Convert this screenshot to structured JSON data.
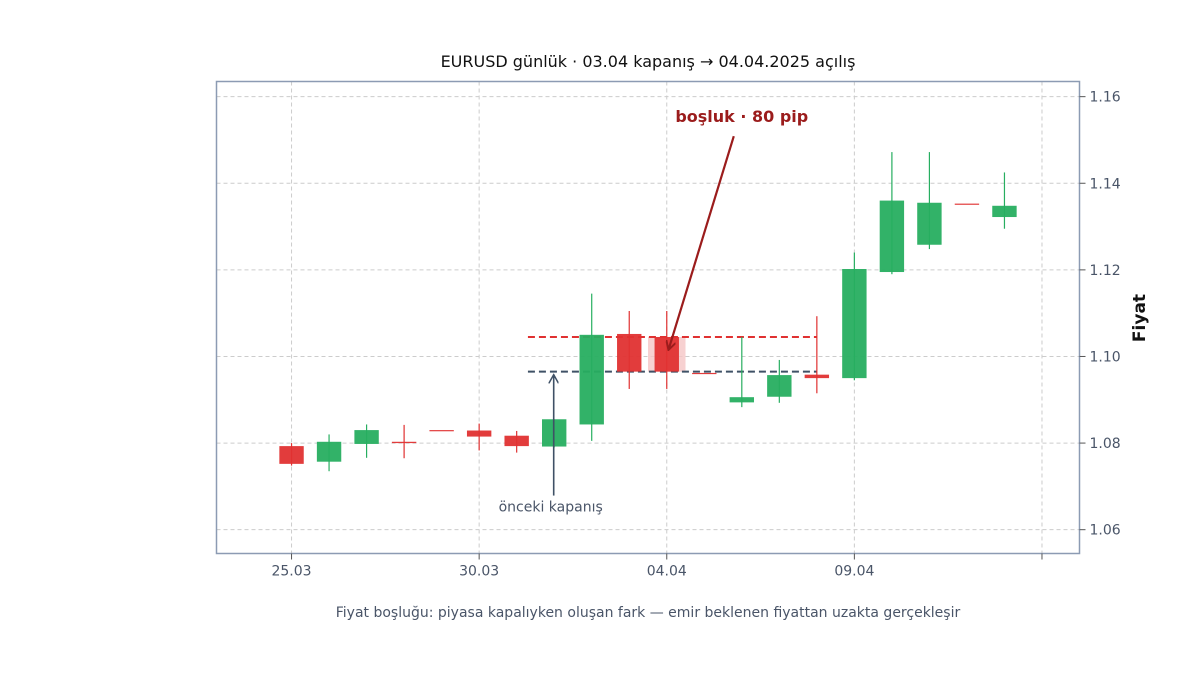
{
  "chart_data": {
    "type": "candlestick",
    "title": "EURUSD günlük · 03.04 kapanış → 04.04.2025 açılış",
    "xlabel": "",
    "ylabel": "Fiyat",
    "caption": "Fiyat boşluğu: piyasa kapalıyken oluşan fark — emir beklenen fiyattan uzakta gerçekleşir",
    "ylim": [
      1.0545,
      1.1635
    ],
    "yticks": [
      1.06,
      1.08,
      1.1,
      1.12,
      1.14,
      1.16
    ],
    "ytick_labels": [
      "1.06",
      "1.08",
      "1.10",
      "1.12",
      "1.14",
      "1.16"
    ],
    "xlim": [
      -2,
      21
    ],
    "xticks": [
      0,
      5,
      10,
      15,
      20
    ],
    "xtick_labels": [
      "25.03",
      "30.03",
      "04.04",
      "09.04",
      ""
    ],
    "grid": true,
    "colors": {
      "up": "#27ae60",
      "down": "#e03131",
      "gap_fill": "#f5c6c6",
      "gap_line": "#e03131",
      "prev_line": "#3f5166",
      "annotation": "#9b1c1c",
      "frame": "#8c9bb3",
      "grid": "#cccccc",
      "text_muted": "#4a5568"
    },
    "candles": [
      {
        "x": 0,
        "open": 1.0793,
        "high": 1.08,
        "low": 1.0748,
        "close": 1.0752
      },
      {
        "x": 1,
        "open": 1.0757,
        "high": 1.082,
        "low": 1.0735,
        "close": 1.0803
      },
      {
        "x": 2,
        "open": 1.0798,
        "high": 1.0843,
        "low": 1.0766,
        "close": 1.083
      },
      {
        "x": 3,
        "open": 1.0803,
        "high": 1.0842,
        "low": 1.0765,
        "close": 1.08
      },
      {
        "x": 4,
        "open": 1.083,
        "high": 1.083,
        "low": 1.083,
        "close": 1.0829
      },
      {
        "x": 5,
        "open": 1.0829,
        "high": 1.0845,
        "low": 1.0783,
        "close": 1.0815
      },
      {
        "x": 6,
        "open": 1.0817,
        "high": 1.0828,
        "low": 1.0778,
        "close": 1.0793
      },
      {
        "x": 7,
        "open": 1.0792,
        "high": 1.0855,
        "low": 1.079,
        "close": 1.0855
      },
      {
        "x": 8,
        "open": 1.0843,
        "high": 1.1145,
        "low": 1.0805,
        "close": 1.105
      },
      {
        "x": 9,
        "open": 1.1052,
        "high": 1.1105,
        "low": 1.0925,
        "close": 1.0965
      },
      {
        "x": 10,
        "open": 1.1045,
        "high": 1.1105,
        "low": 1.0925,
        "close": 1.0965
      },
      {
        "x": 11,
        "open": 1.0962,
        "high": 1.0962,
        "low": 1.0962,
        "close": 1.096
      },
      {
        "x": 12,
        "open": 1.0894,
        "high": 1.1045,
        "low": 1.0883,
        "close": 1.0906
      },
      {
        "x": 13,
        "open": 1.0907,
        "high": 1.0992,
        "low": 1.0893,
        "close": 1.0957
      },
      {
        "x": 14,
        "open": 1.0958,
        "high": 1.1093,
        "low": 1.0915,
        "close": 1.095
      },
      {
        "x": 15,
        "open": 1.095,
        "high": 1.124,
        "low": 1.0945,
        "close": 1.1202
      },
      {
        "x": 16,
        "open": 1.1195,
        "high": 1.1472,
        "low": 1.119,
        "close": 1.136
      },
      {
        "x": 17,
        "open": 1.1258,
        "high": 1.1472,
        "low": 1.1248,
        "close": 1.1355
      },
      {
        "x": 18,
        "open": 1.1353,
        "high": 1.1353,
        "low": 1.1353,
        "close": 1.1352
      },
      {
        "x": 19,
        "open": 1.1322,
        "high": 1.1425,
        "low": 1.1295,
        "close": 1.1348
      }
    ],
    "gap": {
      "x": 10,
      "prev_close": 1.0965,
      "open": 1.1045,
      "line_from_x": 6.3,
      "line_to_x": 14.0,
      "label": "boşluk · 80 pip",
      "label_anchor_x": 11.2,
      "label_anchor_y": 1.1555
    },
    "prev_close_annotation": {
      "text": "önceki kapanış",
      "x": 7.0,
      "text_y": 1.0628,
      "arrow_to_y": 1.0965
    }
  }
}
